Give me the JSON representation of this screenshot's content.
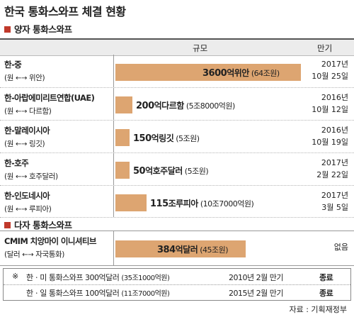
{
  "title": "한국 통화스와프 체결 현황",
  "sections": {
    "bilateral": "양자 통화스와프",
    "multilateral": "다자 통화스와프"
  },
  "header": {
    "scale": "규모",
    "maturity": "만기"
  },
  "bullet_color": "#c0392b",
  "bar_color": "#dda571",
  "rows": [
    {
      "name": "한-중",
      "pair_left": "원",
      "pair_right": "위안",
      "amount": "3600",
      "unit": "억위안",
      "won": "(64조원)",
      "mat1": "2017년",
      "mat2": "10월 25일"
    },
    {
      "name": "한-아랍에미리트연합(UAE)",
      "pair_left": "원",
      "pair_right": "다르함",
      "amount": "200",
      "unit": "억다르함",
      "won": "(5조8000억원)",
      "mat1": "2016년",
      "mat2": "10월 12일"
    },
    {
      "name": "한-말레이시아",
      "pair_left": "원",
      "pair_right": "링깃",
      "amount": "150",
      "unit": "억링깃",
      "won": "(5조원)",
      "mat1": "2016년",
      "mat2": "10월 19일"
    },
    {
      "name": "한-호주",
      "pair_left": "원",
      "pair_right": "호주달러",
      "amount": "50",
      "unit": "억호주달러",
      "won": "(5조원)",
      "mat1": "2017년",
      "mat2": "2월 22일"
    },
    {
      "name": "한-인도네시아",
      "pair_left": "원",
      "pair_right": "루피아",
      "amount": "115",
      "unit": "조루피아",
      "won": "(10조7000억원)",
      "mat1": "2017년",
      "mat2": "3월 5일"
    },
    {
      "name": "CMIM 치앙마이 이니셔티브",
      "pair_left": "달러",
      "pair_right": "자국통화",
      "amount": "384",
      "unit": "억달러",
      "won": "(45조원)",
      "mat1": "",
      "mat2": "없음"
    }
  ],
  "chart_data": {
    "type": "bar",
    "categories": [
      "한-중",
      "한-아랍에미리트연합(UAE)",
      "한-말레이시아",
      "한-호주",
      "한-인도네시아",
      "CMIM 치앙마이 이니셔티브"
    ],
    "series": [
      {
        "values": [
          64,
          5.8,
          5,
          5,
          10.7,
          45
        ]
      }
    ]
  },
  "notes": [
    {
      "mark": "※",
      "label": "한ㆍ미 통화스와프 300억달러",
      "won": "(35조1000억원)",
      "date": "2010년 2월 만기",
      "status": "종료"
    },
    {
      "mark": "",
      "label": "한ㆍ일 통화스와프 100억달러",
      "won": "(11조7000억원)",
      "date": "2015년 2월 만기",
      "status": "종료"
    }
  ],
  "source": "자료 : 기획재정부"
}
